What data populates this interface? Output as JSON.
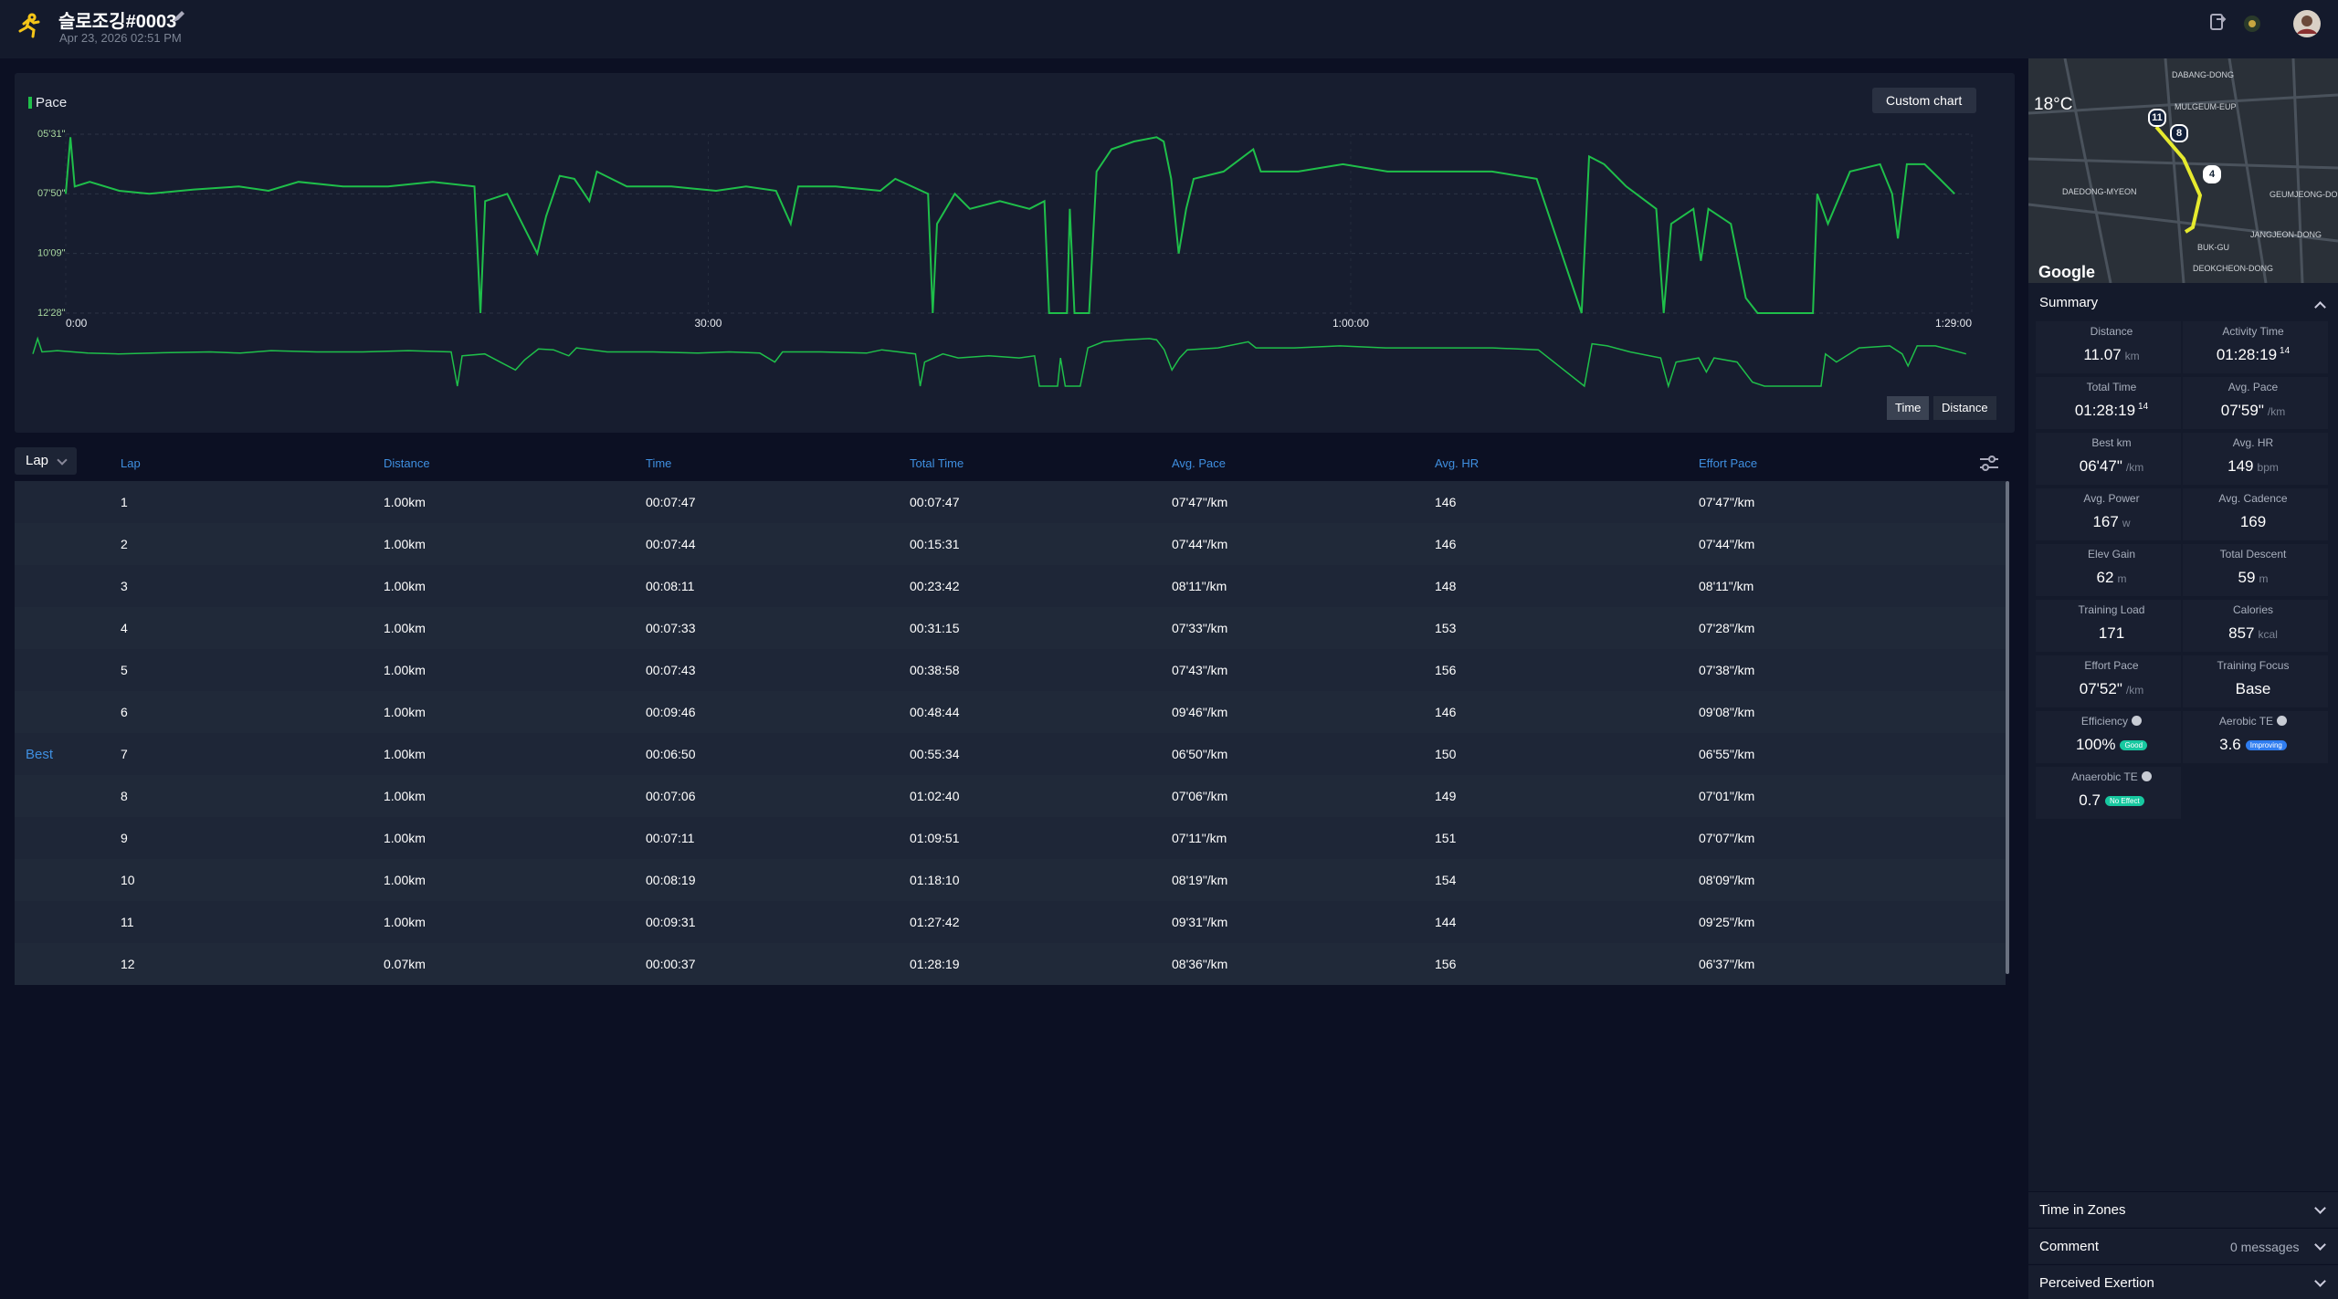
{
  "header": {
    "title": "슬로조깅#0003",
    "date": "Apr 23, 2026 02:51 PM"
  },
  "chart_data": {
    "type": "line",
    "legend": "Pace",
    "custom_chart_button": "Custom chart",
    "x_mode_buttons": [
      "Time",
      "Distance"
    ],
    "x": [
      0,
      13,
      25,
      67,
      150,
      234,
      359,
      485,
      568,
      652,
      777,
      903,
      1028,
      1145,
      1162,
      1175,
      1237,
      1279,
      1321,
      1346,
      1384,
      1425,
      1467,
      1488,
      1572,
      1697,
      1822,
      1906,
      1990,
      2031,
      2052,
      2157,
      2282,
      2324,
      2416,
      2429,
      2441,
      2491,
      2533,
      2617,
      2700,
      2742,
      2755,
      2805,
      2813,
      2826,
      2867,
      2888,
      2930,
      2993,
      3056,
      3076,
      3097,
      3118,
      3139,
      3160,
      3244,
      3327,
      3348,
      3453,
      3578,
      3703,
      3829,
      3996,
      4121,
      4247,
      4268,
      4310,
      4372,
      4456,
      4477,
      4498,
      4560,
      4581,
      4602,
      4665,
      4707,
      4740,
      4895,
      4907,
      4937,
      4999,
      5083,
      5117,
      5133,
      5158,
      5208,
      5250,
      5292
    ],
    "series": [
      {
        "name": "Pace",
        "color": "#1fbf4a",
        "values": [
          470,
          338,
          453,
          442,
          463,
          470,
          460,
          453,
          463,
          442,
          453,
          453,
          442,
          453,
          748,
          487,
          470,
          540,
          609,
          522,
          428,
          435,
          487,
          418,
          453,
          453,
          463,
          453,
          463,
          540,
          453,
          453,
          463,
          435,
          470,
          748,
          540,
          470,
          505,
          487,
          505,
          487,
          748,
          748,
          505,
          748,
          748,
          418,
          366,
          348,
          338,
          348,
          435,
          609,
          505,
          435,
          418,
          366,
          418,
          418,
          401,
          418,
          418,
          418,
          435,
          748,
          383,
          401,
          453,
          505,
          748,
          540,
          505,
          626,
          505,
          540,
          713,
          748,
          748,
          470,
          540,
          418,
          401,
          470,
          574,
          401,
          401,
          435,
          470
        ]
      }
    ],
    "xlim": [
      0,
      5340
    ],
    "xticks": [
      {
        "value": 0,
        "label": "0:00"
      },
      {
        "value": 1800,
        "label": "30:00"
      },
      {
        "value": 3600,
        "label": "1:00:00"
      },
      {
        "value": 5340,
        "label": "1:29:00"
      }
    ],
    "ylim": [
      331,
      748
    ],
    "y_inverted": true,
    "yticks": [
      {
        "value": 331,
        "label": "05'31\""
      },
      {
        "value": 470,
        "label": "07'50\""
      },
      {
        "value": 609,
        "label": "10'09\""
      },
      {
        "value": 748,
        "label": "12'28\""
      }
    ],
    "grid": true
  },
  "table": {
    "selector": "Lap",
    "columns": [
      "Lap",
      "Distance",
      "Time",
      "Total Time",
      "Avg. Pace",
      "Avg. HR",
      "Effort Pace"
    ],
    "rows": [
      {
        "cells": [
          1,
          "1.00km",
          "00:07:47",
          "00:07:47",
          "07'47\"/km",
          146,
          "07'47\"/km"
        ]
      },
      {
        "cells": [
          2,
          "1.00km",
          "00:07:44",
          "00:15:31",
          "07'44\"/km",
          146,
          "07'44\"/km"
        ]
      },
      {
        "cells": [
          3,
          "1.00km",
          "00:08:11",
          "00:23:42",
          "08'11\"/km",
          148,
          "08'11\"/km"
        ]
      },
      {
        "cells": [
          4,
          "1.00km",
          "00:07:33",
          "00:31:15",
          "07'33\"/km",
          153,
          "07'28\"/km"
        ]
      },
      {
        "cells": [
          5,
          "1.00km",
          "00:07:43",
          "00:38:58",
          "07'43\"/km",
          156,
          "07'38\"/km"
        ]
      },
      {
        "cells": [
          6,
          "1.00km",
          "00:09:46",
          "00:48:44",
          "09'46\"/km",
          146,
          "09'08\"/km"
        ]
      },
      {
        "marker": "Best",
        "cells": [
          7,
          "1.00km",
          "00:06:50",
          "00:55:34",
          "06'50\"/km",
          150,
          "06'55\"/km"
        ]
      },
      {
        "cells": [
          8,
          "1.00km",
          "00:07:06",
          "01:02:40",
          "07'06\"/km",
          149,
          "07'01\"/km"
        ]
      },
      {
        "cells": [
          9,
          "1.00km",
          "00:07:11",
          "01:09:51",
          "07'11\"/km",
          151,
          "07'07\"/km"
        ]
      },
      {
        "cells": [
          10,
          "1.00km",
          "00:08:19",
          "01:18:10",
          "08'19\"/km",
          154,
          "08'09\"/km"
        ]
      },
      {
        "cells": [
          11,
          "1.00km",
          "00:09:31",
          "01:27:42",
          "09'31\"/km",
          144,
          "09'25\"/km"
        ]
      },
      {
        "cells": [
          12,
          "0.07km",
          "00:00:37",
          "01:28:19",
          "08'36\"/km",
          156,
          "06'37\"/km"
        ]
      }
    ]
  },
  "map": {
    "temperature": "18°C",
    "attribution": "Google",
    "markers": [
      "11",
      "8",
      "4"
    ],
    "places": [
      "DABANG-DONG",
      "MULGEUM-EUP",
      "DAEDONG-MYEON",
      "GEUMJEONG-DONG",
      "JANGJEON-DONG",
      "BUK-GU",
      "DEOKCHEON-DONG"
    ]
  },
  "summary": {
    "title": "Summary",
    "items": [
      {
        "label": "Distance",
        "value": "11.07",
        "unit": "km"
      },
      {
        "label": "Activity Time",
        "value": "01:28:19",
        "sup": "14"
      },
      {
        "label": "Total Time",
        "value": "01:28:19",
        "sup": "14"
      },
      {
        "label": "Avg. Pace",
        "value": "07'59\"",
        "unit": "/km"
      },
      {
        "label": "Best km",
        "value": "06'47\"",
        "unit": "/km"
      },
      {
        "label": "Avg. HR",
        "value": "149",
        "unit": "bpm"
      },
      {
        "label": "Avg. Power",
        "value": "167",
        "unit": "w"
      },
      {
        "label": "Avg. Cadence",
        "value": "169"
      },
      {
        "label": "Elev Gain",
        "value": "62",
        "unit": "m"
      },
      {
        "label": "Total Descent",
        "value": "59",
        "unit": "m"
      },
      {
        "label": "Training Load",
        "value": "171"
      },
      {
        "label": "Calories",
        "value": "857",
        "unit": "kcal"
      },
      {
        "label": "Effort Pace",
        "value": "07'52\"",
        "unit": "/km"
      },
      {
        "label": "Training Focus",
        "value": "Base"
      },
      {
        "label": "Efficiency",
        "value": "100%",
        "badge": "Good",
        "info": true
      },
      {
        "label": "Aerobic TE",
        "value": "3.6",
        "badge": "Improving",
        "info": true
      },
      {
        "label": "Anaerobic TE",
        "value": "0.7",
        "badge": "No Effect",
        "info": true
      }
    ]
  },
  "sections": [
    {
      "title": "Time in Zones"
    },
    {
      "title": "Comment",
      "detail": "0 messages"
    },
    {
      "title": "Perceived Exertion"
    }
  ]
}
